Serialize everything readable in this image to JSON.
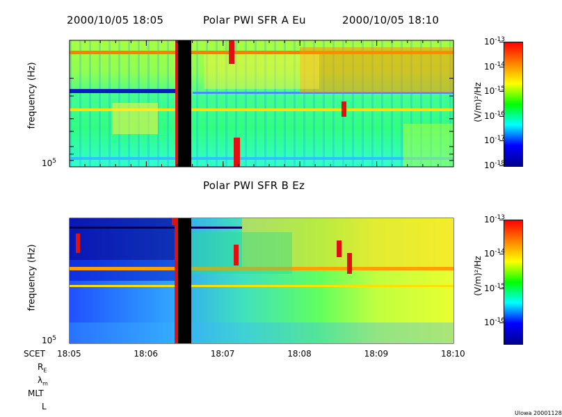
{
  "header": {
    "start_time": "2000/10/05 18:05",
    "end_time": "2000/10/05 18:10",
    "panel_a_title": "Polar PWI SFR A Eu",
    "panel_b_title": "Polar PWI SFR B Ez"
  },
  "footer": {
    "row_labels": [
      "SCET",
      "R",
      "λ",
      "MLT",
      "L"
    ],
    "row_label_subscripts": [
      "",
      "E",
      "m",
      "",
      ""
    ],
    "credit": "Ulowa 20001128"
  },
  "chart_data": [
    {
      "type": "heatmap",
      "title": "Polar PWI SFR A Eu",
      "ylabel": "frequency (Hz)",
      "y_tick_label": "10^5",
      "x_tick_labels": [
        "18:05",
        "18:06",
        "18:07",
        "18:08",
        "18:09",
        "18:10"
      ],
      "data_gap": {
        "start": "18:06:25",
        "end": "18:06:35"
      },
      "colorbar": {
        "label": "(V/m)²/Hz",
        "tick_exponents": [
          -13,
          -14,
          -15,
          -16,
          -17,
          -18
        ],
        "range_exponents": [
          -18,
          -13
        ]
      }
    },
    {
      "type": "heatmap",
      "title": "Polar PWI SFR B Ez",
      "ylabel": "frequency (Hz)",
      "y_tick_label": "10^5",
      "x_tick_labels": [
        "18:05",
        "18:06",
        "18:07",
        "18:08",
        "18:09",
        "18:10"
      ],
      "data_gap": {
        "start": "18:06:25",
        "end": "18:06:35"
      },
      "colorbar": {
        "label": "(V/m)²/Hz",
        "tick_exponents": [
          -13,
          -14,
          -15,
          -16
        ],
        "range_exponents": [
          -16.6,
          -13
        ]
      }
    }
  ],
  "colors": {
    "gap": "#000000",
    "colormap": [
      "#00008f",
      "#0000ff",
      "#00ffff",
      "#00ff00",
      "#ffff00",
      "#ff8000",
      "#ff0000"
    ]
  }
}
